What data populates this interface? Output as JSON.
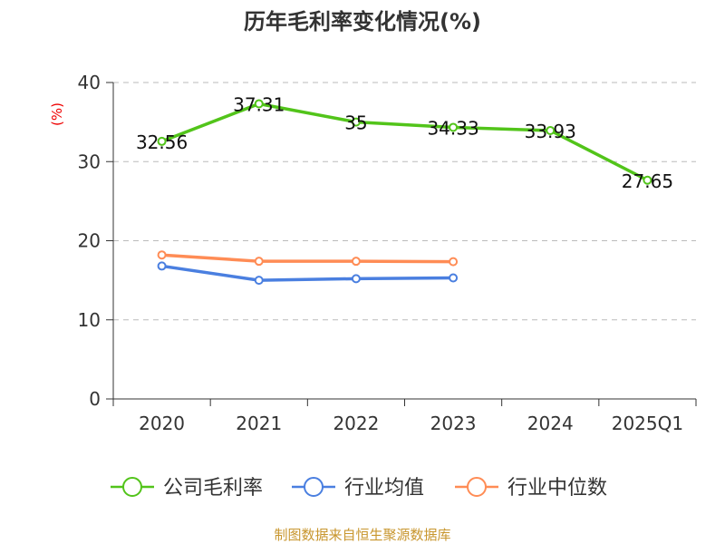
{
  "chart_data": {
    "type": "line",
    "title": "历年毛利率变化情况(%)",
    "ylabel": "(%)",
    "xlabel": "",
    "categories": [
      "2020",
      "2021",
      "2022",
      "2023",
      "2024",
      "2025Q1"
    ],
    "ylim": [
      0,
      40
    ],
    "yticks": [
      0,
      10,
      20,
      30,
      40
    ],
    "grid": true,
    "legend_position": "bottom",
    "series": [
      {
        "name": "公司毛利率",
        "color": "#52c41a",
        "values": [
          32.56,
          37.31,
          35,
          34.33,
          33.93,
          27.65
        ],
        "labels": [
          "32.56",
          "37.31",
          "35",
          "34.33",
          "33.93",
          "27.65"
        ]
      },
      {
        "name": "行业均值",
        "color": "#4a7fe0",
        "values": [
          16.8,
          15.0,
          15.2,
          15.3,
          null,
          null
        ]
      },
      {
        "name": "行业中位数",
        "color": "#ff8c55",
        "values": [
          18.2,
          17.4,
          17.4,
          17.35,
          null,
          null
        ]
      }
    ]
  },
  "source": "制图数据来自恒生聚源数据库"
}
